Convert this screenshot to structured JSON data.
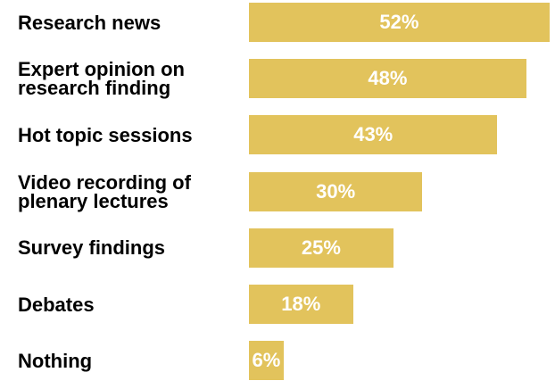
{
  "chart_data": {
    "type": "bar",
    "orientation": "horizontal",
    "categories": [
      "Research news",
      "Expert opinion on research finding",
      "Hot topic sessions",
      "Video recording of plenary lectures",
      "Survey findings",
      "Debates",
      "Nothing"
    ],
    "category_lines": [
      [
        "Research news"
      ],
      [
        "Expert opinion on",
        "research finding"
      ],
      [
        "Hot topic sessions"
      ],
      [
        "Video recording of",
        "plenary lectures"
      ],
      [
        "Survey findings"
      ],
      [
        "Debates"
      ],
      [
        "Nothing"
      ]
    ],
    "values": [
      52,
      48,
      43,
      30,
      25,
      18,
      6
    ],
    "value_labels": [
      "52%",
      "48%",
      "43%",
      "30%",
      "25%",
      "18%",
      "6%"
    ],
    "unit": "%",
    "xlim": [
      0,
      52.5
    ],
    "grid": false,
    "legend": "none",
    "bar_color": "#e2c35c",
    "label_color": "#ffffff",
    "text_color": "#000000"
  }
}
